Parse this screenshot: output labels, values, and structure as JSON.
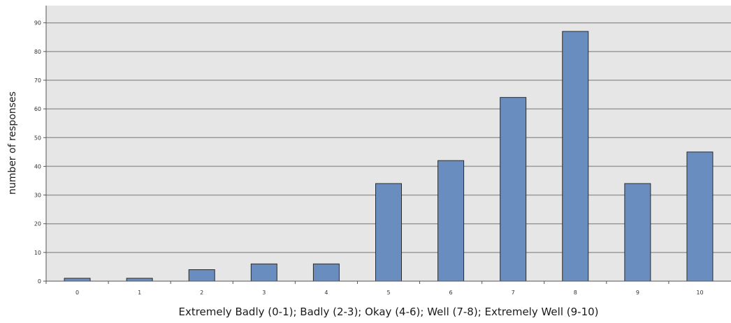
{
  "chart_data": {
    "type": "bar",
    "categories": [
      "0",
      "1",
      "2",
      "3",
      "4",
      "5",
      "6",
      "7",
      "8",
      "9",
      "10"
    ],
    "values": [
      1,
      1,
      4,
      6,
      6,
      34,
      42,
      64,
      87,
      34,
      45
    ],
    "xlabel": "Extremely Badly (0-1); Badly (2-3); Okay (4-6); Well (7-8); Extremely Well (9-10)",
    "ylabel": "number of responses",
    "ylim": [
      0,
      96
    ],
    "yticks": [
      "0",
      "10",
      "20",
      "30",
      "40",
      "50",
      "60",
      "70",
      "80",
      "90"
    ],
    "grid": true,
    "legend": "none"
  },
  "colors": {
    "plot_background": "#e6e6e6",
    "bar_fill": "#6a8dbf",
    "bar_stroke": "#2b2b2b",
    "gridline": "#9a9a9a"
  }
}
